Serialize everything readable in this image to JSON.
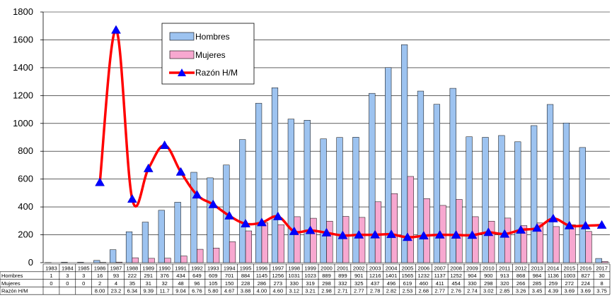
{
  "chart_data": {
    "type": "bar",
    "categories": [
      "1983",
      "1984",
      "1985",
      "1986",
      "1987",
      "1988",
      "1989",
      "1990",
      "1991",
      "1992",
      "1993",
      "1994",
      "1995",
      "1996",
      "1997",
      "1998",
      "1999",
      "2000",
      "2001",
      "2002",
      "2003",
      "2004",
      "2005",
      "2006",
      "2007",
      "2008",
      "2009",
      "2010",
      "2011",
      "2012",
      "2013",
      "2014",
      "2015",
      "2016",
      "2017"
    ],
    "series": [
      {
        "name": "Hombres",
        "kind": "bar",
        "color": "#9DC3F0",
        "values": [
          1,
          3,
          3,
          16,
          93,
          222,
          291,
          376,
          434,
          649,
          609,
          701,
          884,
          1145,
          1256,
          1031,
          1023,
          889,
          899,
          901,
          1216,
          1401,
          1565,
          1232,
          1137,
          1252,
          904,
          900,
          913,
          868,
          984,
          1136,
          1003,
          827,
          30
        ]
      },
      {
        "name": "Mujeres",
        "kind": "bar",
        "color": "#F7A8D0",
        "values": [
          0,
          0,
          0,
          2,
          4,
          35,
          31,
          32,
          48,
          96,
          105,
          150,
          228,
          286,
          273,
          330,
          319,
          298,
          332,
          325,
          437,
          496,
          619,
          460,
          411,
          454,
          330,
          298,
          320,
          266,
          285,
          259,
          272,
          224,
          8
        ]
      },
      {
        "name": "Razón H/M",
        "kind": "line",
        "color": "#FF0000",
        "values": [
          null,
          null,
          null,
          8.0,
          23.2,
          6.34,
          9.39,
          11.7,
          9.04,
          6.76,
          5.8,
          4.67,
          3.88,
          4.0,
          4.6,
          3.12,
          3.21,
          2.98,
          2.71,
          2.77,
          2.78,
          2.82,
          2.53,
          2.68,
          2.77,
          2.76,
          2.74,
          3.02,
          2.85,
          3.26,
          3.45,
          4.39,
          3.69,
          3.69,
          3.75
        ]
      }
    ],
    "table_rows": [
      {
        "label": "Hombres",
        "cells": [
          "1",
          "3",
          "3",
          "16",
          "93",
          "222",
          "291",
          "376",
          "434",
          "649",
          "609",
          "701",
          "884",
          "1145",
          "1256",
          "1031",
          "1023",
          "889",
          "899",
          "901",
          "1216",
          "1401",
          "1565",
          "1232",
          "1137",
          "1252",
          "904",
          "900",
          "913",
          "868",
          "984",
          "1136",
          "1003",
          "827",
          "30"
        ]
      },
      {
        "label": "Mujeres",
        "cells": [
          "0",
          "0",
          "0",
          "2",
          "4",
          "35",
          "31",
          "32",
          "48",
          "96",
          "105",
          "150",
          "228",
          "286",
          "273",
          "330",
          "319",
          "298",
          "332",
          "325",
          "437",
          "496",
          "619",
          "460",
          "411",
          "454",
          "330",
          "298",
          "320",
          "266",
          "285",
          "259",
          "272",
          "224",
          "8"
        ]
      },
      {
        "label": "Razón H/M",
        "cells": [
          "",
          "",
          "",
          "8.00",
          "23.2",
          "6.34",
          "9.39",
          "11.7",
          "9.04",
          "6.76",
          "5.80",
          "4.67",
          "3.88",
          "4.00",
          "4.60",
          "3.12",
          "3.21",
          "2.98",
          "2.71",
          "2.77",
          "2.78",
          "2.82",
          "2.53",
          "2.68",
          "2.77",
          "2.76",
          "2.74",
          "3.02",
          "2.85",
          "3.26",
          "3.45",
          "4.39",
          "3.69",
          "3.69",
          "3.75"
        ]
      }
    ],
    "yticks": [
      "0",
      "200",
      "400",
      "600",
      "800",
      "1000",
      "1200",
      "1400",
      "1600",
      "1800"
    ],
    "ylim": [
      0,
      1800
    ],
    "ratio_scale": 72,
    "legend": [
      "Hombres",
      "Mujeres",
      "Razón H/M"
    ],
    "legend_position": "top-left",
    "grid": true,
    "title": "",
    "xlabel": "",
    "ylabel": ""
  }
}
